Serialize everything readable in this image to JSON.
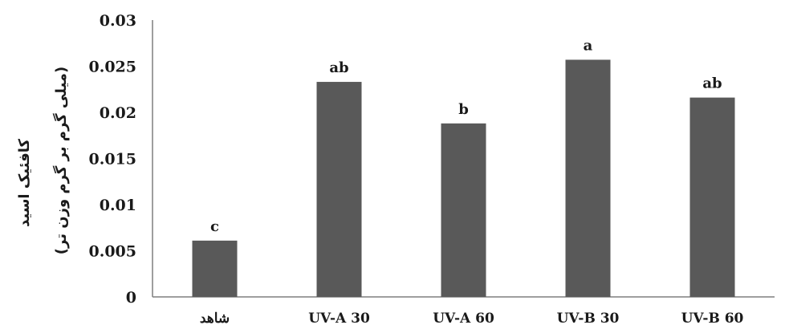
{
  "chart_data": {
    "type": "bar",
    "categories": [
      "شاهد",
      "UV-A 30",
      "UV-A 60",
      "UV-B 30",
      "UV-B 60"
    ],
    "values": [
      0.0061,
      0.0233,
      0.0188,
      0.0257,
      0.0216
    ],
    "significance_letters": [
      "c",
      "ab",
      "b",
      "a",
      "ab"
    ],
    "ylabel": "کافئیک اسید",
    "ylabel_unit": "(میلی گرم بر گرم وزن تر)",
    "ylim": [
      0,
      0.03
    ],
    "yticks": [
      0,
      0.005,
      0.01,
      0.015,
      0.02,
      0.025,
      0.03
    ],
    "ytick_labels": [
      "0",
      "0.005",
      "0.01",
      "0.015",
      "0.02",
      "0.025",
      "0.03"
    ],
    "bar_color": "#595959",
    "grid": false,
    "legend": "none"
  }
}
